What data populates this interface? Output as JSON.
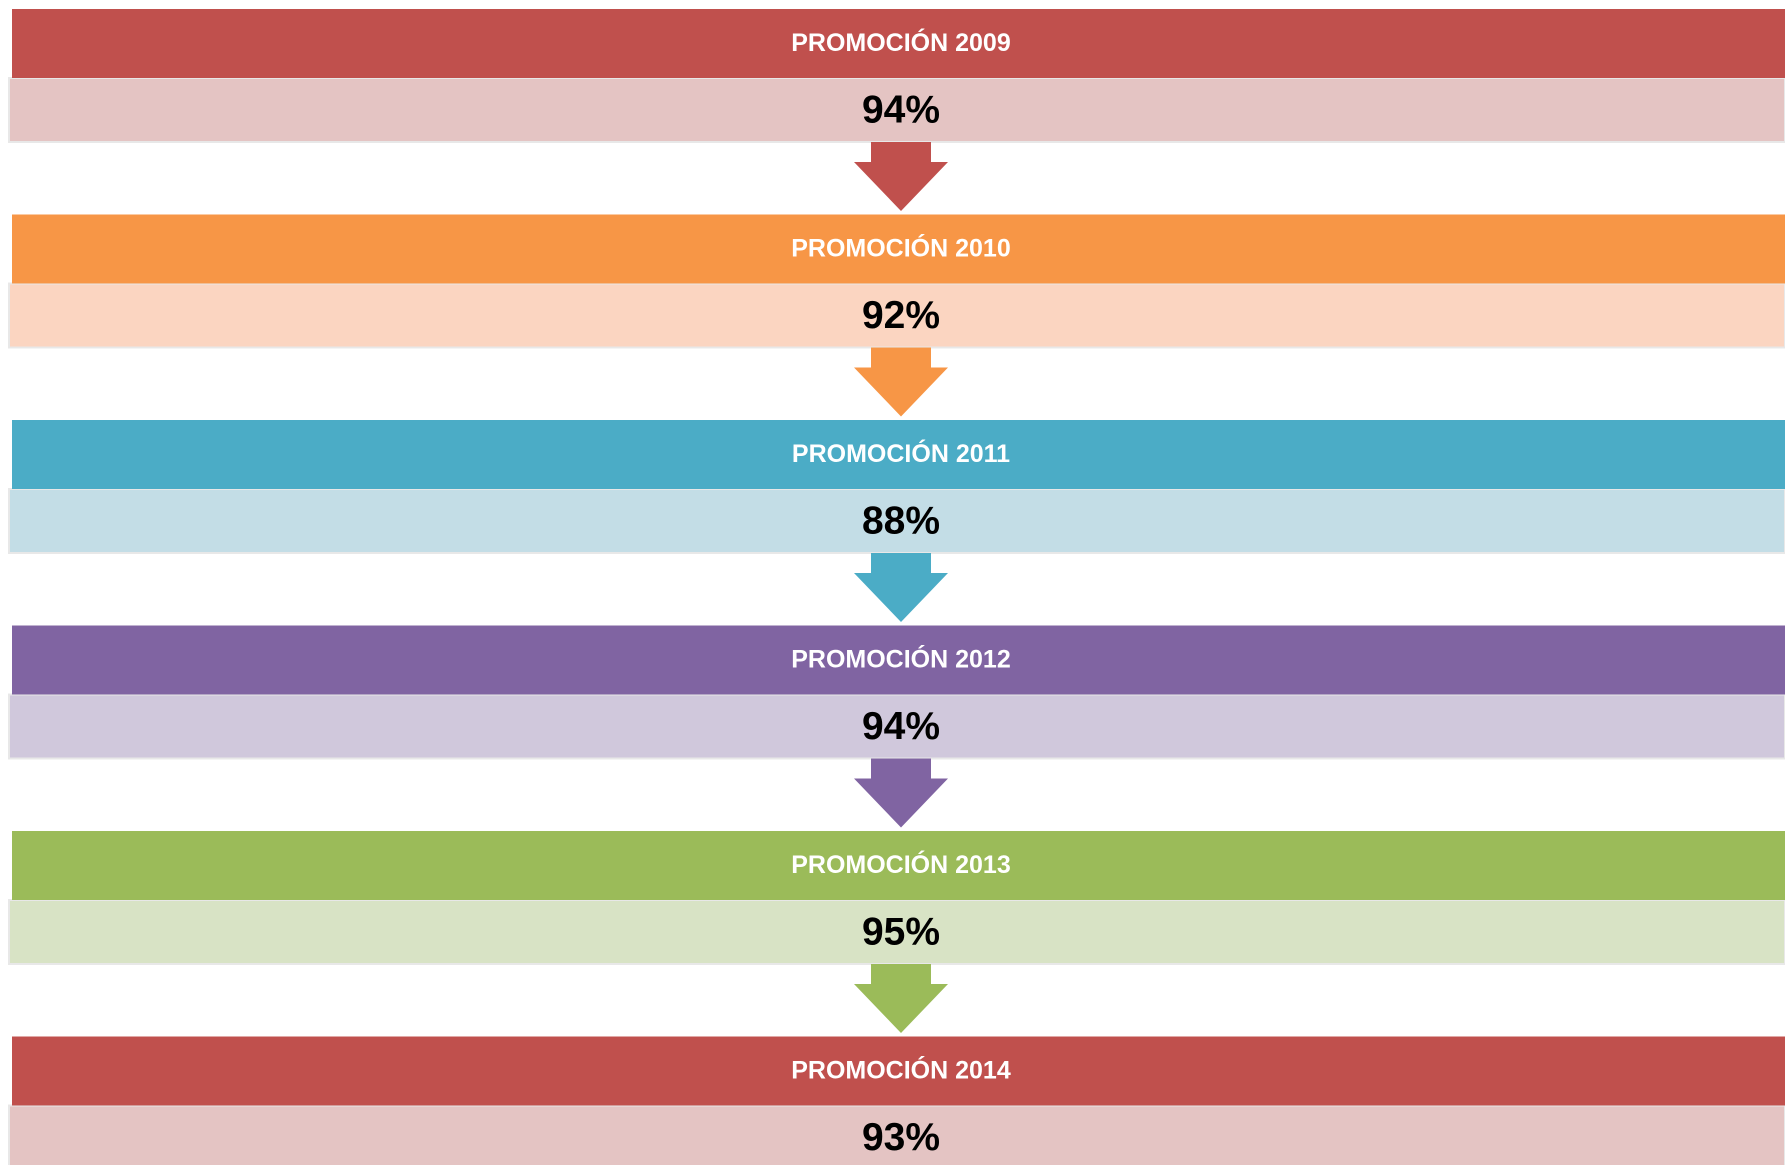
{
  "steps": [
    {
      "title": "PROMOCIÓN 2009",
      "value": "94%",
      "color": "#c0504d",
      "light_color": "#e4c4c3"
    },
    {
      "title": "PROMOCIÓN 2010",
      "value": "92%",
      "color": "#f79646",
      "light_color": "#fbd5c1"
    },
    {
      "title": "PROMOCIÓN 2011",
      "value": "88%",
      "color": "#4bacc6",
      "light_color": "#c3dde6"
    },
    {
      "title": "PROMOCIÓN 2012",
      "value": "94%",
      "color": "#8064a2",
      "light_color": "#d0c8dc"
    },
    {
      "title": "PROMOCIÓN 2013",
      "value": "95%",
      "color": "#9bbb59",
      "light_color": "#d8e3c5"
    },
    {
      "title": "PROMOCIÓN 2014",
      "value": "93%",
      "color": "#c0504d",
      "light_color": "#e4c4c3"
    }
  ]
}
